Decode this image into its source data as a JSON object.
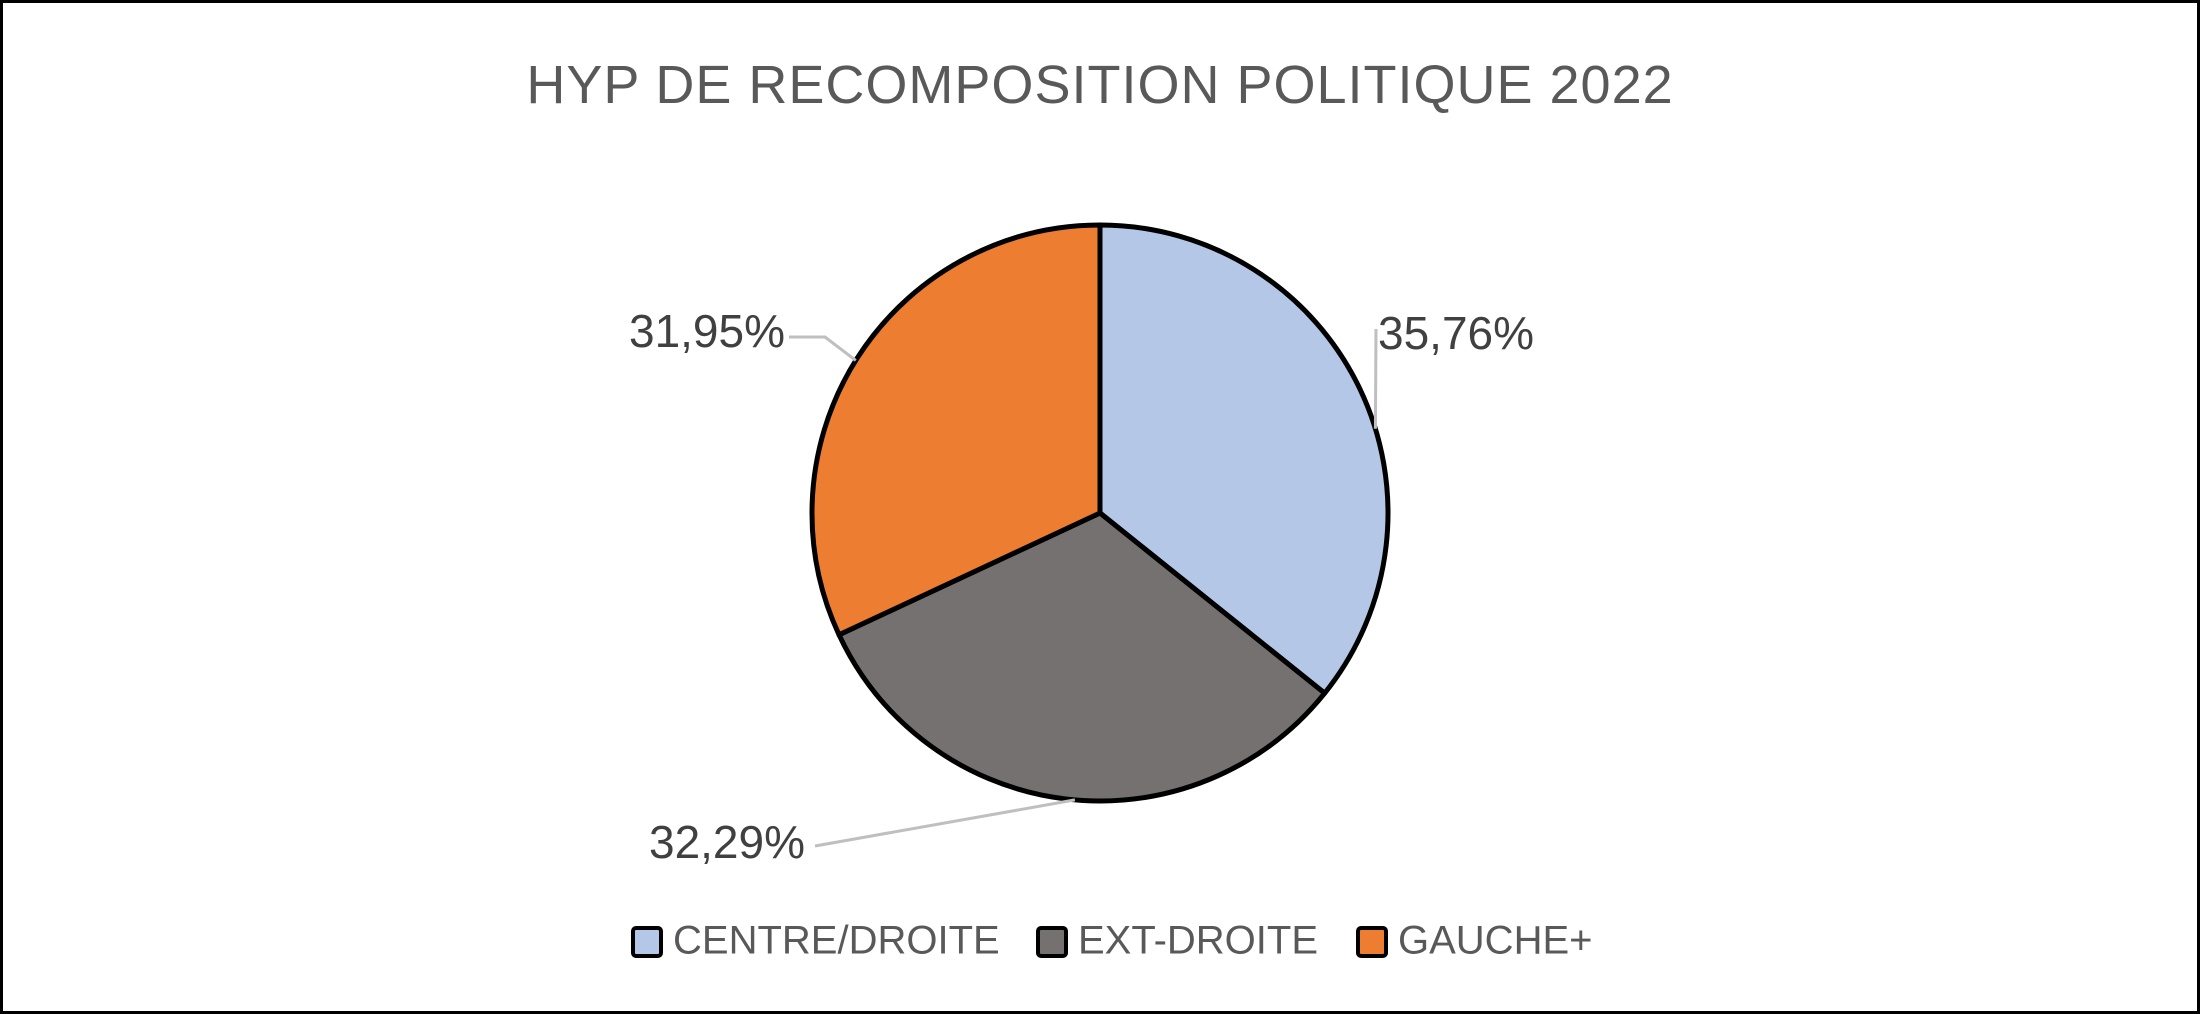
{
  "chart_data": {
    "type": "pie",
    "title": "HYP DE RECOMPOSITION POLITIQUE 2022",
    "categories": [
      "CENTRE/DROITE",
      "EXT-DROITE",
      "GAUCHE+"
    ],
    "values": [
      35.76,
      32.29,
      31.95
    ],
    "value_labels": [
      "35,76%",
      "32,29%",
      "31,95%"
    ],
    "colors": [
      "#b4c7e7",
      "#767171",
      "#ed7d31"
    ],
    "start_angle_deg": 0,
    "direction": "clockwise",
    "legend_position": "bottom"
  }
}
